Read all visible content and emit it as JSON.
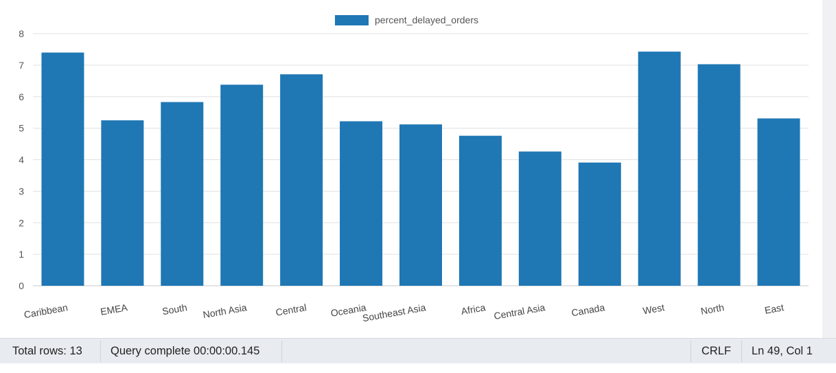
{
  "chart_data": {
    "type": "bar",
    "categories": [
      "Caribbean",
      "EMEA",
      "South",
      "North Asia",
      "Central",
      "Oceania",
      "Southeast Asia",
      "Africa",
      "Central Asia",
      "Canada",
      "West",
      "North",
      "East"
    ],
    "series": [
      {
        "name": "percent_delayed_orders",
        "values": [
          7.4,
          5.25,
          5.83,
          6.38,
          6.71,
          5.22,
          5.12,
          4.76,
          4.26,
          3.91,
          7.43,
          7.03,
          5.31
        ]
      }
    ],
    "ylim": [
      0,
      8
    ],
    "yticks": [
      "0",
      "1",
      "2",
      "3",
      "4",
      "5",
      "6",
      "7",
      "8"
    ],
    "grid": true,
    "legend_position": "top",
    "bar_color": "#1f77b4"
  },
  "status_bar": {
    "total_rows": "Total rows: 13",
    "query_status": "Query complete 00:00:00.145",
    "line_ending": "CRLF",
    "cursor_position": "Ln 49, Col 1"
  },
  "colors": {
    "grid": "#e0e0e0",
    "axis": "#c8c8c8",
    "status_bg": "#e8ebf0"
  }
}
